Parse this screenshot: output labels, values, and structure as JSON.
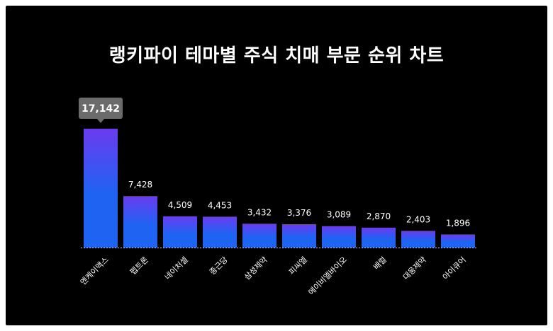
{
  "chart_data": {
    "type": "bar",
    "title": "랭키파이 테마별 주식 치매 부문 순위 차트",
    "categories": [
      "엔케이맥스",
      "펩트론",
      "네이처셀",
      "종근당",
      "삼성제약",
      "피씨엘",
      "에이비엘바이오",
      "배럴",
      "대웅제약",
      "아이큐어"
    ],
    "values": [
      17142,
      7428,
      4509,
      4453,
      3432,
      3376,
      3089,
      2870,
      2403,
      1896
    ],
    "value_labels": [
      "17,142",
      "7,428",
      "4,509",
      "4,453",
      "3,432",
      "3,376",
      "3,089",
      "2,870",
      "2,403",
      "1,896"
    ],
    "ylim": [
      0,
      17142
    ],
    "grid": false,
    "highlight_index": 0,
    "colors": {
      "background": "#000000",
      "bar_top": "#6a3cf0",
      "bar_bottom": "#1e63f2",
      "callout": "#6b6b6b",
      "baseline": "#bfc7ff"
    }
  }
}
